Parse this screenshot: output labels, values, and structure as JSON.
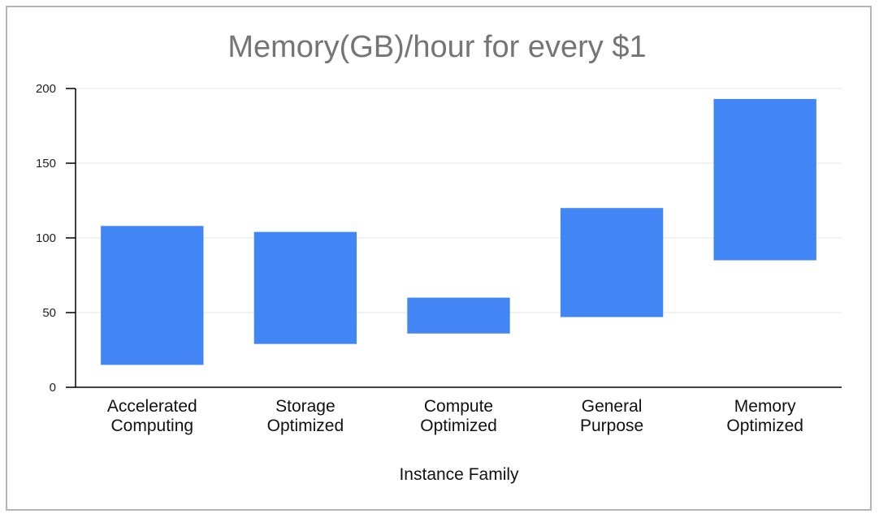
{
  "chart_data": {
    "type": "bar",
    "subtype": "floating-range",
    "title": "Memory(GB)/hour for every $1",
    "xlabel": "Instance Family",
    "ylabel": "",
    "ylim": [
      0,
      200
    ],
    "yticks": [
      0,
      50,
      100,
      150,
      200
    ],
    "grid": true,
    "legend": "none",
    "bar_color": "#4285f4",
    "categories": [
      [
        "Accelerated",
        "Computing"
      ],
      [
        "Storage",
        "Optimized"
      ],
      [
        "Compute",
        "Optimized"
      ],
      [
        "General",
        "Purpose"
      ],
      [
        "Memory",
        "Optimized"
      ]
    ],
    "ranges": [
      {
        "low": 15,
        "high": 108
      },
      {
        "low": 29,
        "high": 104
      },
      {
        "low": 36,
        "high": 60
      },
      {
        "low": 47,
        "high": 120
      },
      {
        "low": 85,
        "high": 193
      }
    ]
  }
}
